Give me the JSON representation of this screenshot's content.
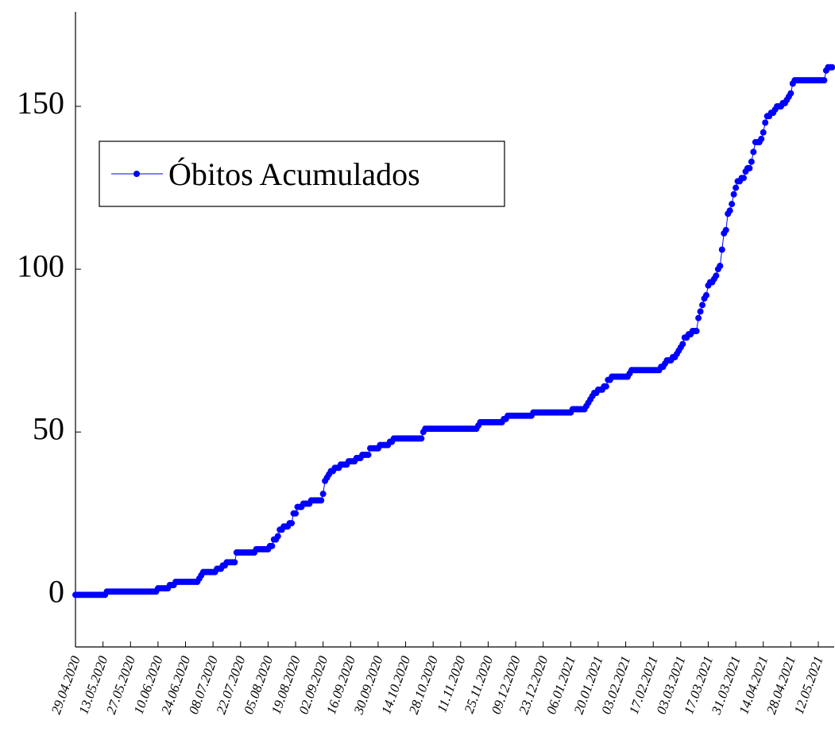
{
  "chart_data": {
    "type": "line",
    "categories": [
      "29.04.2020",
      null,
      null,
      null,
      null,
      null,
      null,
      null,
      null,
      null,
      null,
      null,
      null,
      null,
      "13.05.2020",
      null,
      null,
      null,
      null,
      null,
      null,
      null,
      null,
      null,
      null,
      null,
      null,
      null,
      "27.05.2020",
      null,
      null,
      null,
      null,
      null,
      null,
      null,
      null,
      null,
      null,
      null,
      null,
      null,
      "10.06.2020",
      null,
      null,
      null,
      null,
      null,
      null,
      null,
      null,
      null,
      null,
      null,
      null,
      null,
      "24.06.2020",
      null,
      null,
      null,
      null,
      null,
      null,
      null,
      null,
      null,
      null,
      null,
      null,
      null,
      "08.07.2020",
      null,
      null,
      null,
      null,
      null,
      null,
      null,
      null,
      null,
      null,
      null,
      null,
      null,
      "22.07.2020",
      null,
      null,
      null,
      null,
      null,
      null,
      null,
      null,
      null,
      null,
      null,
      null,
      null,
      "05.08.2020",
      null,
      null,
      null,
      null,
      null,
      null,
      null,
      null,
      null,
      null,
      null,
      null,
      null,
      "19.08.2020",
      null,
      null,
      null,
      null,
      null,
      null,
      null,
      null,
      null,
      null,
      null,
      null,
      null,
      "02.09.2020",
      null,
      null,
      null,
      null,
      null,
      null,
      null,
      null,
      null,
      null,
      null,
      null,
      null,
      "16.09.2020",
      null,
      null,
      null,
      null,
      null,
      null,
      null,
      null,
      null,
      null,
      null,
      null,
      null,
      "30.09.2020",
      null,
      null,
      null,
      null,
      null,
      null,
      null,
      null,
      null,
      null,
      null,
      null,
      null,
      "14.10.2020",
      null,
      null,
      null,
      null,
      null,
      null,
      null,
      null,
      null,
      null,
      null,
      null,
      null,
      "28.10.2020",
      null,
      null,
      null,
      null,
      null,
      null,
      null,
      null,
      null,
      null,
      null,
      null,
      null,
      "11.11.2020",
      null,
      null,
      null,
      null,
      null,
      null,
      null,
      null,
      null,
      null,
      null,
      null,
      null,
      "25.11.2020",
      null,
      null,
      null,
      null,
      null,
      null,
      null,
      null,
      null,
      null,
      null,
      null,
      null,
      "09.12.2020",
      null,
      null,
      null,
      null,
      null,
      null,
      null,
      null,
      null,
      null,
      null,
      null,
      null,
      "23.12.2020",
      null,
      null,
      null,
      null,
      null,
      null,
      null,
      null,
      null,
      null,
      null,
      null,
      null,
      "06.01.2021",
      null,
      null,
      null,
      null,
      null,
      null,
      null,
      null,
      null,
      null,
      null,
      null,
      null,
      "20.01.2021",
      null,
      null,
      null,
      null,
      null,
      null,
      null,
      null,
      null,
      null,
      null,
      null,
      null,
      "03.02.2021",
      null,
      null,
      null,
      null,
      null,
      null,
      null,
      null,
      null,
      null,
      null,
      null,
      null,
      "17.02.2021",
      null,
      null,
      null,
      null,
      null,
      null,
      null,
      null,
      null,
      null,
      null,
      null,
      null,
      "03.03.2021",
      null,
      null,
      null,
      null,
      null,
      null,
      null,
      null,
      null,
      null,
      null,
      null,
      null,
      "17.03.2021",
      null,
      null,
      null,
      null,
      null,
      null,
      null,
      null,
      null,
      null,
      null,
      null,
      null,
      "31.03.2021",
      null,
      null,
      null,
      null,
      null,
      null,
      null,
      null,
      null,
      null,
      null,
      null,
      null,
      "14.04.2021",
      null,
      null,
      null,
      null,
      null,
      null,
      null,
      null,
      null,
      null,
      null,
      null,
      null,
      "28.04.2021",
      null,
      null,
      null,
      null,
      null,
      null,
      null,
      null,
      null,
      null,
      null,
      null,
      null,
      "12.05.2021",
      null,
      null,
      null,
      null,
      null,
      null,
      null
    ],
    "series": [
      {
        "name": "Óbitos Acumulados",
        "color": "#0000ff",
        "values": [
          0,
          0,
          0,
          0,
          0,
          0,
          0,
          0,
          0,
          0,
          0,
          0,
          0,
          0,
          0,
          0,
          1,
          1,
          1,
          1,
          1,
          1,
          1,
          1,
          1,
          1,
          1,
          1,
          1,
          1,
          1,
          1,
          1,
          1,
          1,
          1,
          1,
          1,
          1,
          1,
          1,
          1,
          2,
          2,
          2,
          2,
          2,
          2,
          3,
          3,
          3,
          4,
          4,
          4,
          4,
          4,
          4,
          4,
          4,
          4,
          4,
          4,
          4,
          5,
          6,
          7,
          7,
          7,
          7,
          7,
          7,
          7,
          8,
          8,
          8,
          9,
          9,
          10,
          10,
          10,
          10,
          10,
          13,
          13,
          13,
          13,
          13,
          13,
          13,
          13,
          13,
          13,
          14,
          14,
          14,
          14,
          14,
          14,
          14,
          15,
          15,
          17,
          17,
          18,
          20,
          20,
          21,
          21,
          21,
          22,
          22,
          25,
          25,
          27,
          27,
          27,
          28,
          28,
          28,
          28,
          29,
          29,
          29,
          29,
          29,
          29,
          31,
          35,
          36,
          37,
          38,
          38,
          39,
          39,
          39,
          40,
          40,
          40,
          40,
          41,
          41,
          41,
          41,
          42,
          42,
          42,
          43,
          43,
          43,
          43,
          45,
          45,
          45,
          45,
          45,
          46,
          46,
          46,
          46,
          46,
          47,
          47,
          48,
          48,
          48,
          48,
          48,
          48,
          48,
          48,
          48,
          48,
          48,
          48,
          48,
          48,
          48,
          50,
          51,
          51,
          51,
          51,
          51,
          51,
          51,
          51,
          51,
          51,
          51,
          51,
          51,
          51,
          51,
          51,
          51,
          51,
          51,
          51,
          51,
          51,
          51,
          51,
          51,
          51,
          51,
          52,
          53,
          53,
          53,
          53,
          53,
          53,
          53,
          53,
          53,
          53,
          53,
          53,
          54,
          54,
          55,
          55,
          55,
          55,
          55,
          55,
          55,
          55,
          55,
          55,
          55,
          55,
          55,
          56,
          56,
          56,
          56,
          56,
          56,
          56,
          56,
          56,
          56,
          56,
          56,
          56,
          56,
          56,
          56,
          56,
          56,
          56,
          56,
          57,
          57,
          57,
          57,
          57,
          57,
          57,
          58,
          59,
          60,
          61,
          62,
          62,
          63,
          63,
          63,
          64,
          64,
          66,
          66,
          67,
          67,
          67,
          67,
          67,
          67,
          67,
          67,
          67,
          68,
          69,
          69,
          69,
          69,
          69,
          69,
          69,
          69,
          69,
          69,
          69,
          69,
          69,
          69,
          69,
          70,
          70,
          71,
          72,
          72,
          72,
          73,
          73,
          74,
          75,
          76,
          77,
          79,
          79,
          80,
          80,
          81,
          81,
          81,
          85,
          87,
          89,
          91,
          92,
          95,
          96,
          96,
          97,
          98,
          100,
          101,
          106,
          111,
          112,
          117,
          118,
          120,
          123,
          125,
          127,
          127,
          128,
          128,
          130,
          131,
          131,
          133,
          136,
          139,
          139,
          139,
          140,
          142,
          145,
          147,
          147,
          148,
          148,
          149,
          150,
          150,
          150,
          151,
          151,
          152,
          153,
          154,
          157,
          158,
          158,
          158,
          158,
          158,
          158,
          158,
          158,
          158,
          158,
          158,
          158,
          158,
          158,
          158,
          158,
          161,
          162,
          162,
          162
        ]
      }
    ],
    "ylim": [
      -16,
      179
    ],
    "yticks": [
      0,
      50,
      100,
      150
    ],
    "legend": "upper left"
  }
}
